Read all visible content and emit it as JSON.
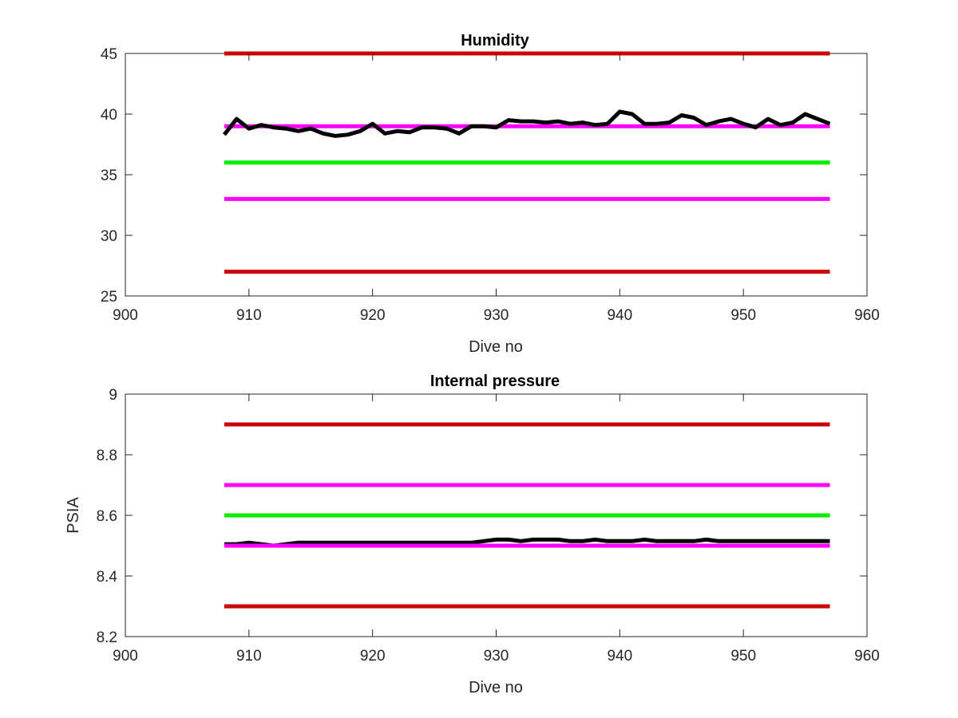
{
  "chart_data": [
    {
      "type": "line",
      "title": "Humidity",
      "xlabel": "Dive no",
      "ylabel": "",
      "xlim": [
        900,
        960
      ],
      "ylim": [
        25,
        45
      ],
      "xticks": [
        900,
        910,
        920,
        930,
        940,
        950,
        960
      ],
      "yticks": [
        25,
        30,
        35,
        40,
        45
      ],
      "xtick_labels": [
        "900",
        "910",
        "920",
        "930",
        "940",
        "950",
        "960"
      ],
      "ytick_labels": [
        "25",
        "30",
        "35",
        "40",
        "45"
      ],
      "grid": false,
      "series": [
        {
          "color": "#cc0000",
          "x": [
            908,
            957
          ],
          "y": [
            45,
            45
          ]
        },
        {
          "color": "#ff00ff",
          "x": [
            908,
            957
          ],
          "y": [
            39,
            39
          ]
        },
        {
          "color": "#00ee00",
          "x": [
            908,
            957
          ],
          "y": [
            36,
            36
          ]
        },
        {
          "color": "#ff00ff",
          "x": [
            908,
            957
          ],
          "y": [
            33,
            33
          ]
        },
        {
          "color": "#cc0000",
          "x": [
            908,
            957
          ],
          "y": [
            27,
            27
          ]
        },
        {
          "color": "#000000",
          "x": [
            908,
            909,
            910,
            911,
            912,
            913,
            914,
            915,
            916,
            917,
            918,
            919,
            920,
            921,
            922,
            923,
            924,
            925,
            926,
            927,
            928,
            929,
            930,
            931,
            932,
            933,
            934,
            935,
            936,
            937,
            938,
            939,
            940,
            941,
            942,
            943,
            944,
            945,
            946,
            947,
            948,
            949,
            950,
            951,
            952,
            953,
            954,
            955,
            956,
            957
          ],
          "y": [
            38.3,
            39.6,
            38.8,
            39.1,
            38.9,
            38.8,
            38.6,
            38.8,
            38.4,
            38.2,
            38.3,
            38.6,
            39.2,
            38.4,
            38.6,
            38.5,
            38.9,
            38.9,
            38.8,
            38.4,
            39.0,
            39.0,
            38.9,
            39.5,
            39.4,
            39.4,
            39.3,
            39.4,
            39.2,
            39.3,
            39.1,
            39.2,
            40.2,
            40.0,
            39.2,
            39.2,
            39.3,
            39.9,
            39.7,
            39.1,
            39.4,
            39.6,
            39.2,
            38.9,
            39.6,
            39.1,
            39.3,
            40.0,
            39.6,
            39.2
          ]
        }
      ]
    },
    {
      "type": "line",
      "title": "Internal pressure",
      "xlabel": "Dive no",
      "ylabel": "PSIA",
      "xlim": [
        900,
        960
      ],
      "ylim": [
        8.2,
        9
      ],
      "xticks": [
        900,
        910,
        920,
        930,
        940,
        950,
        960
      ],
      "yticks": [
        8.2,
        8.4,
        8.6,
        8.8,
        9
      ],
      "xtick_labels": [
        "900",
        "910",
        "920",
        "930",
        "940",
        "950",
        "960"
      ],
      "ytick_labels": [
        "8.2",
        "8.4",
        "8.6",
        "8.8",
        "9"
      ],
      "grid": false,
      "series": [
        {
          "color": "#cc0000",
          "x": [
            908,
            957
          ],
          "y": [
            8.9,
            8.9
          ]
        },
        {
          "color": "#ff00ff",
          "x": [
            908,
            957
          ],
          "y": [
            8.7,
            8.7
          ]
        },
        {
          "color": "#00ee00",
          "x": [
            908,
            957
          ],
          "y": [
            8.6,
            8.6
          ]
        },
        {
          "color": "#cc0000",
          "x": [
            908,
            957
          ],
          "y": [
            8.3,
            8.3
          ]
        },
        {
          "color": "#000000",
          "x": [
            908,
            909,
            910,
            911,
            912,
            913,
            914,
            915,
            916,
            917,
            918,
            919,
            920,
            921,
            922,
            923,
            924,
            925,
            926,
            927,
            928,
            929,
            930,
            931,
            932,
            933,
            934,
            935,
            936,
            937,
            938,
            939,
            940,
            941,
            942,
            943,
            944,
            945,
            946,
            947,
            948,
            949,
            950,
            951,
            952,
            953,
            954,
            955,
            956,
            957
          ],
          "y": [
            8.505,
            8.505,
            8.51,
            8.505,
            8.5,
            8.505,
            8.51,
            8.51,
            8.51,
            8.51,
            8.51,
            8.51,
            8.51,
            8.51,
            8.51,
            8.51,
            8.51,
            8.51,
            8.51,
            8.51,
            8.51,
            8.515,
            8.52,
            8.52,
            8.515,
            8.52,
            8.52,
            8.52,
            8.515,
            8.515,
            8.52,
            8.515,
            8.515,
            8.515,
            8.52,
            8.515,
            8.515,
            8.515,
            8.515,
            8.52,
            8.515,
            8.515,
            8.515,
            8.515,
            8.515,
            8.515,
            8.515,
            8.515,
            8.515,
            8.515
          ]
        },
        {
          "color": "#ff00ff",
          "x": [
            908,
            957
          ],
          "y": [
            8.5,
            8.5
          ]
        }
      ]
    }
  ]
}
